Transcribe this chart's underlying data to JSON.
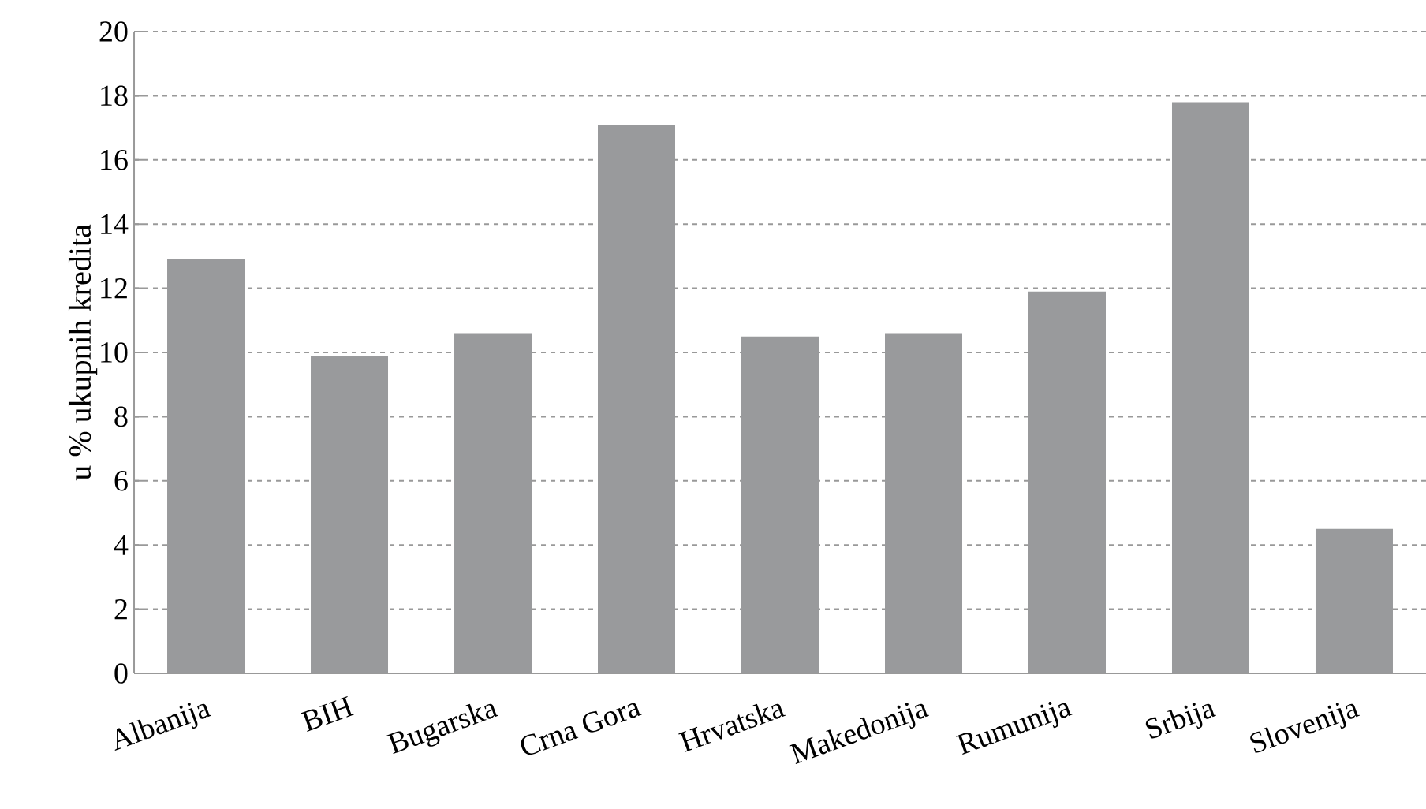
{
  "chart_data": {
    "type": "bar",
    "ylabel": "u %  ukupnih kredita",
    "categories": [
      "Albanija",
      "BIH",
      "Bugarska",
      "Crna Gora",
      "Hrvatska",
      "Makedonija",
      "Rumunija",
      "Srbija",
      "Slovenija"
    ],
    "values": [
      12.9,
      9.9,
      10.6,
      17.1,
      10.5,
      10.6,
      11.9,
      17.8,
      4.5
    ],
    "color": "#999a9c",
    "ylim": [
      0,
      20
    ],
    "yticks": [
      0,
      2,
      4,
      6,
      8,
      10,
      12,
      14,
      16,
      18,
      20
    ],
    "grid": "y"
  }
}
